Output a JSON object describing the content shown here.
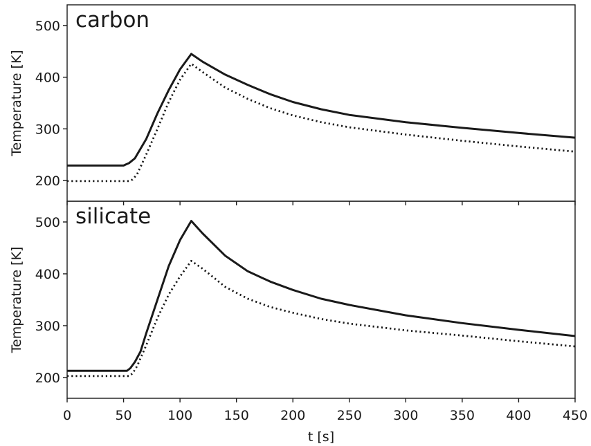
{
  "chart_data": [
    {
      "type": "line",
      "title": "carbon",
      "xlabel": "",
      "ylabel": "Temperature [K]",
      "xlim": [
        0,
        450
      ],
      "ylim": [
        160,
        540
      ],
      "xticks": [
        0,
        50,
        100,
        150,
        200,
        250,
        300,
        350,
        400,
        450
      ],
      "yticks": [
        200,
        300,
        400,
        500
      ],
      "show_x_tick_labels": false,
      "grid": false,
      "series": [
        {
          "style": "solid",
          "color": "#1a1a1a",
          "x": [
            0,
            50,
            52,
            55,
            60,
            70,
            80,
            90,
            100,
            110,
            120,
            140,
            160,
            180,
            200,
            225,
            250,
            300,
            350,
            400,
            450
          ],
          "y": [
            229,
            229,
            231,
            234,
            243,
            280,
            330,
            375,
            415,
            445,
            430,
            405,
            385,
            367,
            352,
            338,
            327,
            313,
            302,
            292,
            283
          ]
        },
        {
          "style": "dotted",
          "color": "#1a1a1a",
          "x": [
            0,
            55,
            58,
            62,
            70,
            80,
            90,
            100,
            110,
            120,
            140,
            160,
            180,
            200,
            225,
            250,
            300,
            350,
            400,
            450
          ],
          "y": [
            199,
            199,
            202,
            212,
            250,
            300,
            352,
            395,
            426,
            410,
            380,
            358,
            340,
            326,
            313,
            303,
            289,
            277,
            266,
            256
          ]
        }
      ]
    },
    {
      "type": "line",
      "title": "silicate",
      "xlabel": "t [s]",
      "ylabel": "Temperature [K]",
      "xlim": [
        0,
        450
      ],
      "ylim": [
        160,
        540
      ],
      "xticks": [
        0,
        50,
        100,
        150,
        200,
        250,
        300,
        350,
        400,
        450
      ],
      "yticks": [
        200,
        300,
        400,
        500
      ],
      "show_x_tick_labels": true,
      "grid": false,
      "series": [
        {
          "style": "solid",
          "color": "#1a1a1a",
          "x": [
            0,
            53,
            56,
            60,
            65,
            70,
            80,
            90,
            100,
            110,
            120,
            140,
            160,
            180,
            200,
            225,
            250,
            300,
            350,
            400,
            450
          ],
          "y": [
            213,
            213,
            218,
            230,
            250,
            285,
            350,
            415,
            465,
            502,
            478,
            435,
            405,
            385,
            369,
            352,
            340,
            320,
            305,
            292,
            280
          ]
        },
        {
          "style": "dotted",
          "color": "#1a1a1a",
          "x": [
            0,
            55,
            58,
            62,
            70,
            80,
            90,
            100,
            110,
            120,
            140,
            160,
            180,
            200,
            225,
            250,
            300,
            350,
            400,
            450
          ],
          "y": [
            203,
            203,
            208,
            222,
            262,
            315,
            360,
            395,
            425,
            410,
            375,
            352,
            336,
            325,
            313,
            304,
            291,
            281,
            270,
            260
          ]
        }
      ]
    }
  ]
}
